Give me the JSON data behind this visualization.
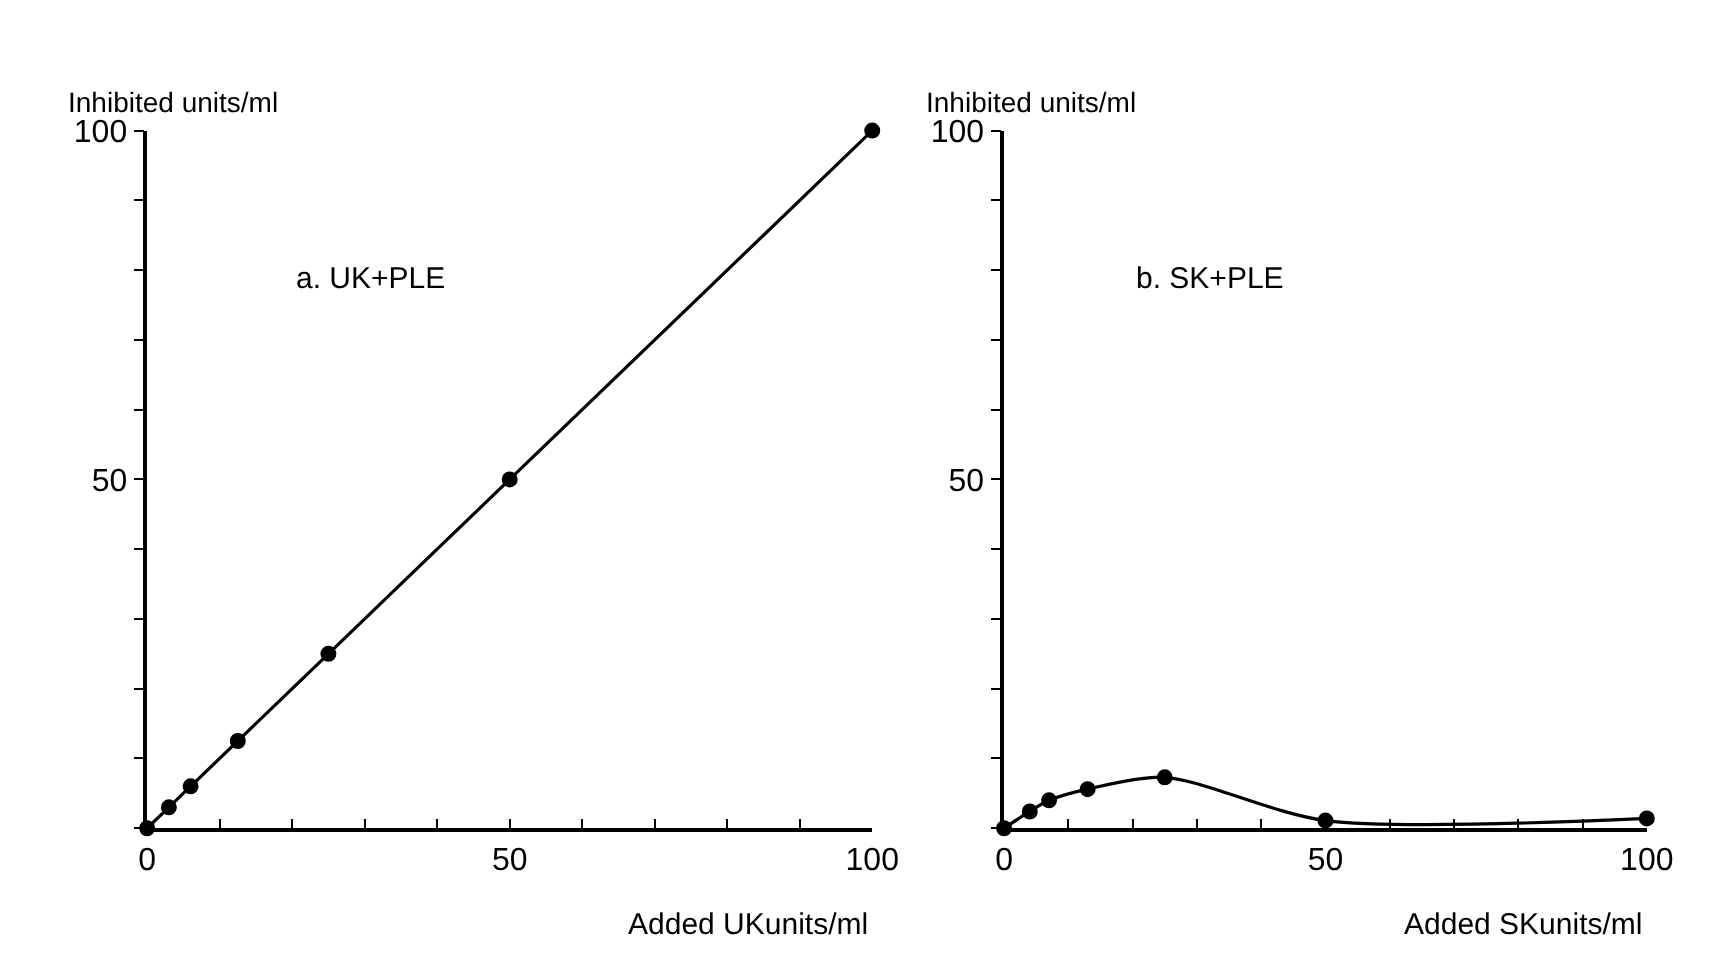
{
  "chart_data": [
    {
      "type": "line",
      "ylabel": "Inhibited units/ml",
      "xlabel": "Added UKunits/ml",
      "annotations": [
        "a. UK+PLE"
      ],
      "marker": "circle",
      "line_style": "solid",
      "x": [
        0,
        3,
        6,
        12.5,
        25,
        50,
        100
      ],
      "series": [
        {
          "color": "#000000",
          "values": [
            0,
            3,
            6,
            12.5,
            25,
            50,
            100
          ]
        }
      ],
      "xlim": [
        0,
        100
      ],
      "ylim": [
        0,
        100
      ],
      "xticks": [
        0,
        {
          "value": 10,
          "label": null
        },
        {
          "value": 20,
          "label": null
        },
        {
          "value": 30,
          "label": null
        },
        {
          "value": 40,
          "label": null
        },
        50,
        {
          "value": 60,
          "label": null
        },
        {
          "value": 70,
          "label": null
        },
        {
          "value": 80,
          "label": null
        },
        {
          "value": 90,
          "label": null
        },
        100
      ],
      "yticks": [
        {
          "value": 0,
          "label": null
        },
        {
          "value": 10,
          "label": null
        },
        {
          "value": 20,
          "label": null
        },
        {
          "value": 30,
          "label": null
        },
        {
          "value": 40,
          "label": null
        },
        50,
        {
          "value": 60,
          "label": null
        },
        {
          "value": 70,
          "label": null
        },
        {
          "value": 80,
          "label": null
        },
        {
          "value": 90,
          "label": null
        },
        100
      ]
    },
    {
      "type": "line",
      "ylabel": "Inhibited units/ml",
      "xlabel": "Added SKunits/ml",
      "annotations": [
        "b. SK+PLE"
      ],
      "marker": "circle",
      "line_style": "solid",
      "x": [
        0,
        4,
        7,
        13,
        25,
        50,
        100
      ],
      "series": [
        {
          "color": "#000000",
          "values": [
            0,
            2.4,
            4,
            5.6,
            7.3,
            1.1,
            1.4
          ]
        }
      ],
      "xlim": [
        0,
        100
      ],
      "ylim": [
        0,
        100
      ],
      "xticks": [
        0,
        {
          "value": 10,
          "label": null
        },
        {
          "value": 20,
          "label": null
        },
        {
          "value": 30,
          "label": null
        },
        {
          "value": 40,
          "label": null
        },
        50,
        {
          "value": 60,
          "label": null
        },
        {
          "value": 70,
          "label": null
        },
        {
          "value": 80,
          "label": null
        },
        {
          "value": 90,
          "label": null
        },
        100
      ],
      "yticks": [
        {
          "value": 0,
          "label": null
        },
        {
          "value": 10,
          "label": null
        },
        {
          "value": 20,
          "label": null
        },
        {
          "value": 30,
          "label": null
        },
        {
          "value": 40,
          "label": null
        },
        50,
        {
          "value": 60,
          "label": null
        },
        {
          "value": 70,
          "label": null
        },
        {
          "value": 80,
          "label": null
        },
        {
          "value": 90,
          "label": null
        },
        100
      ]
    }
  ]
}
